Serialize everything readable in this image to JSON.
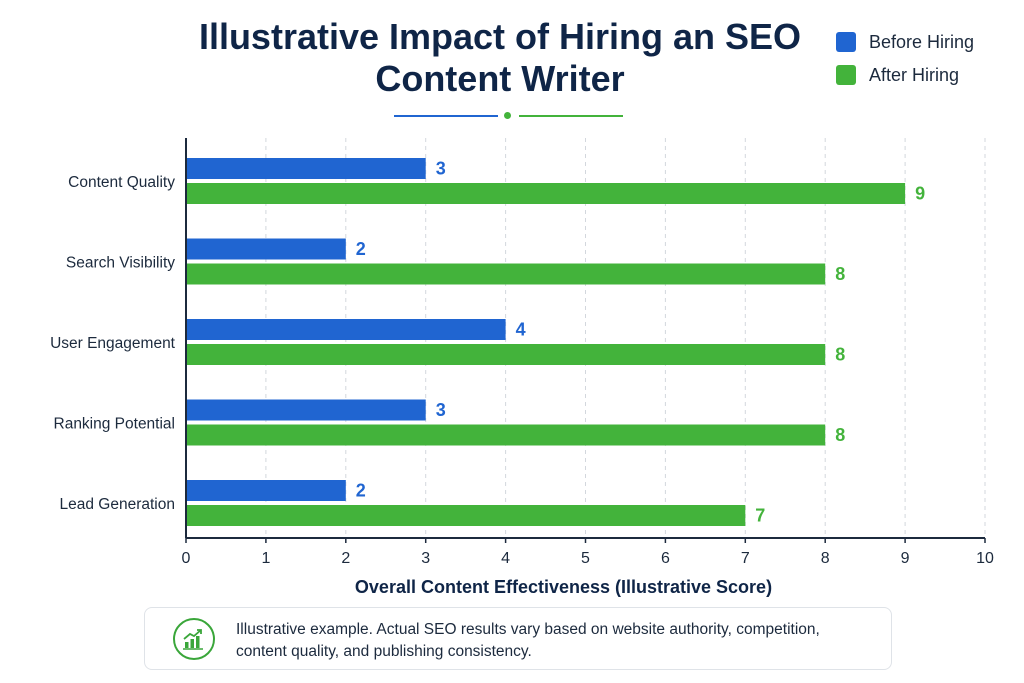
{
  "chart_data": {
    "type": "bar",
    "orientation": "horizontal",
    "title": "Illustrative Impact of Hiring an SEO Content Writer",
    "categories": [
      "Content Quality",
      "Search Visibility",
      "User Engagement",
      "Ranking Potential",
      "Lead Generation"
    ],
    "series": [
      {
        "name": "Before Hiring",
        "color": "#2065d1",
        "values": [
          3,
          2,
          4,
          3,
          2
        ]
      },
      {
        "name": "After Hiring",
        "color": "#43b33b",
        "values": [
          9,
          8,
          8,
          8,
          7
        ]
      }
    ],
    "xlabel": "Overall Content Effectiveness (Illustrative Score)",
    "ylabel": "",
    "xlim": [
      0,
      10
    ],
    "xticks": [
      "0",
      "1",
      "2",
      "3",
      "4",
      "5",
      "6",
      "7",
      "8",
      "9",
      "10"
    ],
    "grid": "vertical dashed",
    "legend_position": "top-right",
    "data_labels": true
  },
  "note": {
    "icon": "growth-chart-icon",
    "text": "Illustrative example. Actual SEO results vary based on website authority, competition, content quality, and publishing consistency."
  },
  "colors": {
    "title": "#0f2547",
    "before": "#2065d1",
    "after": "#43b33b",
    "axis": "#1c2a3d",
    "grid": "#d3d7dd"
  }
}
